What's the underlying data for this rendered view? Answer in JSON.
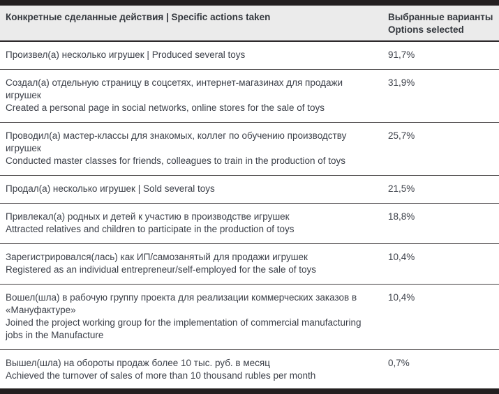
{
  "colors": {
    "bar_dark": "#231f20",
    "header_bg": "#ebebeb",
    "separator": "#413d3f",
    "text": "#3c4049"
  },
  "table": {
    "header": {
      "actions_label": "Конкретные сделанные действия | Specific actions taken",
      "options_label_line1": "Выбранные варианты",
      "options_label_line2": "Options selected"
    },
    "rows": [
      {
        "ru": "Произвел(а) несколько игрушек | Produced several toys",
        "en": "",
        "value": "91,7%"
      },
      {
        "ru": "Создал(а) отдельную страницу в соцсетях, интернет-магазинах для продажи игрушек",
        "en": "Created a personal page in social networks, online stores for the sale of toys",
        "value": "31,9%"
      },
      {
        "ru": "Проводил(а) мастер-классы для знакомых, коллег по обучению производству игрушек",
        "en": "Conducted master classes for friends, colleagues to train in the production of toys",
        "value": "25,7%"
      },
      {
        "ru": "Продал(а) несколько игрушек | Sold several toys",
        "en": "",
        "value": "21,5%"
      },
      {
        "ru": "Привлекал(а) родных и детей к участию в производстве игрушек",
        "en": "Attracted relatives and children to participate in the production of toys",
        "value": "18,8%"
      },
      {
        "ru": "Зарегистрировался(лась) как ИП/самозанятый для продажи игрушек",
        "en": "Registered as an individual entrepreneur/self-employed for the sale of toys",
        "value": "10,4%"
      },
      {
        "ru": "Вошел(шла) в рабочую группу проекта для реализации коммерческих заказов в «Мануфактуре»",
        "en": "Joined the project working group for the implementation of commercial manufacturing jobs in the Manufacture",
        "value": "10,4%"
      },
      {
        "ru": "Вышел(шла) на обороты продаж более 10 тыс. руб. в месяц",
        "en": "Achieved the turnover of sales of more than 10 thousand rubles per month",
        "value": "0,7%"
      }
    ]
  },
  "chart_data": {
    "type": "table",
    "title": "",
    "columns": [
      "Конкретные сделанные действия | Specific actions taken",
      "Выбранные варианты Options selected"
    ],
    "categories": [
      "Произвел(а) несколько игрушек | Produced several toys",
      "Создал(а) отдельную страницу в соцсетях, интернет-магазинах для продажи игрушек | Created a personal page in social networks, online stores for the sale of toys",
      "Проводил(а) мастер-классы для знакомых, коллег по обучению производству игрушек | Conducted master classes for friends, colleagues to train in the production of toys",
      "Продал(а) несколько игрушек | Sold several toys",
      "Привлекал(а) родных и детей к участию в производстве игрушек | Attracted relatives and children to participate in the production of toys",
      "Зарегистрировался(лась) как ИП/самозанятый для продажи игрушек | Registered as an individual entrepreneur/self-employed for the sale of toys",
      "Вошел(шла) в рабочую группу проекта для реализации коммерческих заказов в «Мануфактуре» | Joined the project working group for the implementation of commercial manufacturing jobs in the Manufacture",
      "Вышел(шла) на обороты продаж более 10 тыс. руб. в месяц | Achieved the turnover of sales of more than 10 thousand rubles per month"
    ],
    "values": [
      91.7,
      31.9,
      25.7,
      21.5,
      18.8,
      10.4,
      10.4,
      0.7
    ],
    "value_unit": "%",
    "layout": "two-column table, percentages top-aligned in right column, bilingual row labels"
  }
}
